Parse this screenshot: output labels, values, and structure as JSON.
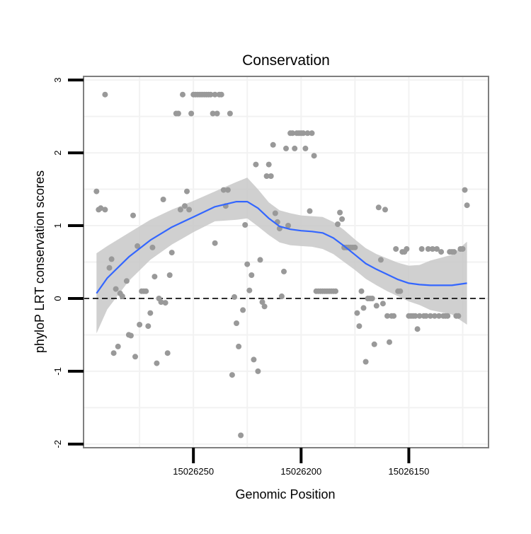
{
  "chart_data": {
    "type": "scatter",
    "title": "Conservation",
    "xlabel": "Genomic Position",
    "ylabel": "phyloP LRT conservation scores",
    "x_reversed": true,
    "xlim": [
      15026301,
      15026113
    ],
    "ylim": [
      -2.05,
      3.05
    ],
    "x_ticks": [
      15026250,
      15026200,
      15026150
    ],
    "x_tick_labels": [
      "15026250",
      "15026200",
      "15026150"
    ],
    "x_minor_ticks": [
      15026275,
      15026225,
      15026175,
      15026125
    ],
    "y_ticks": [
      -2,
      -1,
      0,
      1,
      2,
      3
    ],
    "y_tick_labels": [
      "-2",
      "-1",
      "0",
      "1",
      "2",
      "3"
    ],
    "y_minor_ticks": [
      -1.5,
      -0.5,
      0.5,
      1.5,
      2.5
    ],
    "grid": true,
    "reference_line": {
      "y": 0,
      "style": "dashed"
    },
    "colors": {
      "points": "#999999",
      "smooth": "#3366ff",
      "band": "#c8c8c8",
      "panel_border": "#7f7f7f",
      "grid": "#f2f2f2"
    },
    "points": [
      [
        15026295,
        1.47
      ],
      [
        15026294,
        1.22
      ],
      [
        15026293,
        1.24
      ],
      [
        15026291,
        2.8
      ],
      [
        15026291,
        1.22
      ],
      [
        15026289,
        0.42
      ],
      [
        15026288,
        0.54
      ],
      [
        15026287,
        -0.75
      ],
      [
        15026286,
        0.13
      ],
      [
        15026285,
        -0.66
      ],
      [
        15026284,
        0.07
      ],
      [
        15026283,
        0.03
      ],
      [
        15026281,
        0.24
      ],
      [
        15026280,
        -0.5
      ],
      [
        15026279,
        -0.51
      ],
      [
        15026278,
        1.14
      ],
      [
        15026277,
        -0.8
      ],
      [
        15026276,
        0.72
      ],
      [
        15026275,
        -0.36
      ],
      [
        15026274,
        0.1
      ],
      [
        15026273,
        0.1
      ],
      [
        15026272,
        0.1
      ],
      [
        15026271,
        -0.38
      ],
      [
        15026270,
        -0.2
      ],
      [
        15026269,
        0.7
      ],
      [
        15026268,
        0.3
      ],
      [
        15026267,
        -0.89
      ],
      [
        15026266,
        0.0
      ],
      [
        15026265,
        -0.05
      ],
      [
        15026264,
        1.36
      ],
      [
        15026263,
        -0.06
      ],
      [
        15026262,
        -0.75
      ],
      [
        15026261,
        0.32
      ],
      [
        15026260,
        0.63
      ],
      [
        15026258,
        2.54
      ],
      [
        15026257,
        2.54
      ],
      [
        15026256,
        1.22
      ],
      [
        15026255,
        2.8
      ],
      [
        15026254,
        1.27
      ],
      [
        15026253,
        1.47
      ],
      [
        15026252,
        1.22
      ],
      [
        15026251,
        2.54
      ],
      [
        15026250,
        2.8
      ],
      [
        15026249,
        2.8
      ],
      [
        15026248,
        2.8
      ],
      [
        15026247,
        2.8
      ],
      [
        15026246,
        2.8
      ],
      [
        15026245,
        2.8
      ],
      [
        15026244,
        2.8
      ],
      [
        15026243,
        2.8
      ],
      [
        15026242,
        2.8
      ],
      [
        15026241,
        2.54
      ],
      [
        15026240,
        2.8
      ],
      [
        15026240,
        0.76
      ],
      [
        15026239,
        2.54
      ],
      [
        15026238,
        2.8
      ],
      [
        15026237,
        2.8
      ],
      [
        15026236,
        1.49
      ],
      [
        15026235,
        1.27
      ],
      [
        15026234,
        1.49
      ],
      [
        15026233,
        2.54
      ],
      [
        15026232,
        -1.05
      ],
      [
        15026231,
        0.02
      ],
      [
        15026230,
        -0.34
      ],
      [
        15026229,
        -0.66
      ],
      [
        15026228,
        -1.88
      ],
      [
        15026227,
        -0.16
      ],
      [
        15026226,
        1.01
      ],
      [
        15026225,
        0.47
      ],
      [
        15026224,
        0.11
      ],
      [
        15026223,
        0.32
      ],
      [
        15026222,
        -0.84
      ],
      [
        15026221,
        1.84
      ],
      [
        15026220,
        -1.0
      ],
      [
        15026219,
        0.53
      ],
      [
        15026218,
        -0.05
      ],
      [
        15026217,
        -0.11
      ],
      [
        15026216,
        1.68
      ],
      [
        15026215,
        1.84
      ],
      [
        15026214,
        1.68
      ],
      [
        15026213,
        2.11
      ],
      [
        15026212,
        1.17
      ],
      [
        15026211,
        1.05
      ],
      [
        15026210,
        0.96
      ],
      [
        15026209,
        0.03
      ],
      [
        15026208,
        0.37
      ],
      [
        15026207,
        2.06
      ],
      [
        15026206,
        1.0
      ],
      [
        15026205,
        2.27
      ],
      [
        15026204,
        2.27
      ],
      [
        15026203,
        2.06
      ],
      [
        15026202,
        2.27
      ],
      [
        15026201,
        2.27
      ],
      [
        15026200,
        2.27
      ],
      [
        15026199,
        2.27
      ],
      [
        15026198,
        2.06
      ],
      [
        15026197,
        2.27
      ],
      [
        15026196,
        1.2
      ],
      [
        15026195,
        2.27
      ],
      [
        15026194,
        1.96
      ],
      [
        15026193,
        0.1
      ],
      [
        15026192,
        0.1
      ],
      [
        15026191,
        0.1
      ],
      [
        15026190,
        0.1
      ],
      [
        15026189,
        0.1
      ],
      [
        15026188,
        0.1
      ],
      [
        15026187,
        0.1
      ],
      [
        15026186,
        0.1
      ],
      [
        15026185,
        0.1
      ],
      [
        15026184,
        0.1
      ],
      [
        15026183,
        1.02
      ],
      [
        15026182,
        1.18
      ],
      [
        15026181,
        1.09
      ],
      [
        15026180,
        0.7
      ],
      [
        15026179,
        0.7
      ],
      [
        15026178,
        0.7
      ],
      [
        15026177,
        0.7
      ],
      [
        15026176,
        0.7
      ],
      [
        15026175,
        0.7
      ],
      [
        15026174,
        -0.2
      ],
      [
        15026173,
        -0.38
      ],
      [
        15026172,
        0.1
      ],
      [
        15026171,
        -0.13
      ],
      [
        15026170,
        -0.87
      ],
      [
        15026169,
        0.0
      ],
      [
        15026168,
        0.0
      ],
      [
        15026167,
        0.0
      ],
      [
        15026166,
        -0.63
      ],
      [
        15026165,
        -0.1
      ],
      [
        15026164,
        1.25
      ],
      [
        15026163,
        0.53
      ],
      [
        15026162,
        -0.07
      ],
      [
        15026161,
        1.22
      ],
      [
        15026160,
        -0.24
      ],
      [
        15026159,
        -0.6
      ],
      [
        15026158,
        -0.24
      ],
      [
        15026157,
        -0.24
      ],
      [
        15026156,
        0.68
      ],
      [
        15026155,
        0.1
      ],
      [
        15026154,
        0.1
      ],
      [
        15026153,
        0.64
      ],
      [
        15026152,
        0.64
      ],
      [
        15026151,
        0.68
      ],
      [
        15026150,
        -0.24
      ],
      [
        15026149,
        -0.24
      ],
      [
        15026148,
        -0.24
      ],
      [
        15026147,
        -0.24
      ],
      [
        15026146,
        -0.42
      ],
      [
        15026145,
        -0.24
      ],
      [
        15026144,
        0.68
      ],
      [
        15026143,
        -0.24
      ],
      [
        15026142,
        -0.24
      ],
      [
        15026141,
        0.68
      ],
      [
        15026140,
        -0.24
      ],
      [
        15026139,
        0.68
      ],
      [
        15026138,
        -0.24
      ],
      [
        15026137,
        0.68
      ],
      [
        15026136,
        -0.24
      ],
      [
        15026135,
        0.64
      ],
      [
        15026134,
        -0.24
      ],
      [
        15026133,
        -0.24
      ],
      [
        15026132,
        -0.24
      ],
      [
        15026131,
        0.64
      ],
      [
        15026130,
        0.64
      ],
      [
        15026129,
        0.64
      ],
      [
        15026128,
        -0.24
      ],
      [
        15026127,
        -0.24
      ],
      [
        15026126,
        0.68
      ],
      [
        15026125,
        0.68
      ],
      [
        15026124,
        1.49
      ],
      [
        15026123,
        1.28
      ]
    ],
    "smooth_fit": [
      [
        15026295,
        0.07
      ],
      [
        15026290,
        0.28
      ],
      [
        15026280,
        0.57
      ],
      [
        15026270,
        0.8
      ],
      [
        15026260,
        0.98
      ],
      [
        15026250,
        1.12
      ],
      [
        15026240,
        1.26
      ],
      [
        15026230,
        1.33
      ],
      [
        15026225,
        1.33
      ],
      [
        15026220,
        1.24
      ],
      [
        15026215,
        1.1
      ],
      [
        15026210,
        0.99
      ],
      [
        15026205,
        0.95
      ],
      [
        15026200,
        0.93
      ],
      [
        15026195,
        0.92
      ],
      [
        15026190,
        0.9
      ],
      [
        15026185,
        0.83
      ],
      [
        15026180,
        0.72
      ],
      [
        15026175,
        0.6
      ],
      [
        15026170,
        0.48
      ],
      [
        15026165,
        0.4
      ],
      [
        15026160,
        0.33
      ],
      [
        15026155,
        0.26
      ],
      [
        15026150,
        0.21
      ],
      [
        15026145,
        0.19
      ],
      [
        15026140,
        0.18
      ],
      [
        15026130,
        0.18
      ],
      [
        15026123,
        0.21
      ]
    ],
    "confidence_band": [
      [
        15026295,
        -0.48,
        0.62
      ],
      [
        15026290,
        -0.15,
        0.72
      ],
      [
        15026280,
        0.24,
        0.9
      ],
      [
        15026270,
        0.53,
        1.08
      ],
      [
        15026260,
        0.74,
        1.22
      ],
      [
        15026250,
        0.91,
        1.34
      ],
      [
        15026240,
        1.06,
        1.47
      ],
      [
        15026230,
        1.08,
        1.6
      ],
      [
        15026225,
        1.1,
        1.66
      ],
      [
        15026220,
        0.99,
        1.5
      ],
      [
        15026215,
        0.87,
        1.32
      ],
      [
        15026210,
        0.77,
        1.21
      ],
      [
        15026205,
        0.73,
        1.17
      ],
      [
        15026200,
        0.72,
        1.14
      ],
      [
        15026195,
        0.71,
        1.13
      ],
      [
        15026190,
        0.68,
        1.12
      ],
      [
        15026185,
        0.61,
        1.05
      ],
      [
        15026180,
        0.5,
        0.94
      ],
      [
        15026175,
        0.39,
        0.81
      ],
      [
        15026170,
        0.27,
        0.69
      ],
      [
        15026165,
        0.18,
        0.61
      ],
      [
        15026160,
        0.1,
        0.55
      ],
      [
        15026155,
        0.03,
        0.49
      ],
      [
        15026150,
        -0.04,
        0.45
      ],
      [
        15026145,
        -0.09,
        0.46
      ],
      [
        15026140,
        -0.16,
        0.52
      ],
      [
        15026130,
        -0.22,
        0.6
      ],
      [
        15026123,
        -0.36,
        0.78
      ]
    ]
  }
}
